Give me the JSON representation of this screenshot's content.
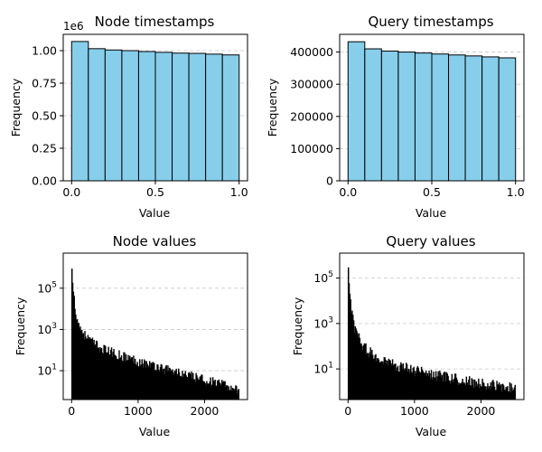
{
  "chart_data": [
    {
      "type": "bar",
      "title": "Node timestamps",
      "xlabel": "Value",
      "ylabel": "Frequency",
      "y_offset_label": "1e6",
      "bin_edges": [
        0.0,
        0.1,
        0.2,
        0.3,
        0.4,
        0.5,
        0.6,
        0.7,
        0.8,
        0.9,
        1.0
      ],
      "values": [
        1.07,
        1.015,
        1.005,
        1.0,
        0.993,
        0.987,
        0.981,
        0.979,
        0.973,
        0.967
      ],
      "xlim": [
        -0.05,
        1.05
      ],
      "ylim": [
        0,
        1.125
      ],
      "xticks": [
        0.0,
        0.5,
        1.0
      ],
      "xtick_labels": [
        "0.0",
        "0.5",
        "1.0"
      ],
      "yticks": [
        0,
        0.25,
        0.5,
        0.75,
        1.0
      ],
      "ytick_labels": [
        "0.00",
        "0.25",
        "0.50",
        "0.75",
        "1.00"
      ],
      "log_y": false,
      "grid": "y dashed",
      "bar_color": "#87ceeb",
      "edge_color": "#000000"
    },
    {
      "type": "bar",
      "title": "Query timestamps",
      "xlabel": "Value",
      "ylabel": "Frequency",
      "bin_edges": [
        0.0,
        0.1,
        0.2,
        0.3,
        0.4,
        0.5,
        0.6,
        0.7,
        0.8,
        0.9,
        1.0
      ],
      "values": [
        432000,
        410000,
        403000,
        400000,
        397000,
        394000,
        391000,
        388000,
        385000,
        382000
      ],
      "xlim": [
        -0.05,
        1.05
      ],
      "ylim": [
        0,
        455000
      ],
      "xticks": [
        0.0,
        0.5,
        1.0
      ],
      "xtick_labels": [
        "0.0",
        "0.5",
        "1.0"
      ],
      "yticks": [
        0,
        100000,
        200000,
        300000,
        400000
      ],
      "ytick_labels": [
        "0",
        "100000",
        "200000",
        "300000",
        "400000"
      ],
      "log_y": false,
      "grid": "y dashed",
      "bar_color": "#87ceeb",
      "edge_color": "#000000"
    },
    {
      "type": "bar",
      "title": "Node values",
      "xlabel": "Value",
      "ylabel": "Frequency",
      "x_range": [
        0,
        2520
      ],
      "curve": [
        [
          0,
          1800000
        ],
        [
          10,
          500000
        ],
        [
          20,
          120000
        ],
        [
          40,
          30000
        ],
        [
          60,
          8000
        ],
        [
          100,
          2000
        ],
        [
          150,
          900
        ],
        [
          200,
          500
        ],
        [
          300,
          250
        ],
        [
          400,
          140
        ],
        [
          500,
          100
        ],
        [
          600,
          75
        ],
        [
          800,
          45
        ],
        [
          1000,
          28
        ],
        [
          1200,
          18
        ],
        [
          1400,
          12
        ],
        [
          1600,
          8
        ],
        [
          1800,
          5
        ],
        [
          2000,
          3.5
        ],
        [
          2200,
          2.3
        ],
        [
          2400,
          1.5
        ],
        [
          2520,
          1.2
        ]
      ],
      "xlim": [
        -126,
        2646
      ],
      "ylim_log10": [
        -0.4,
        6.7
      ],
      "xticks": [
        0,
        1000,
        2000
      ],
      "xtick_labels": [
        "0",
        "1000",
        "2000"
      ],
      "yticks": [
        1,
        3,
        5
      ],
      "ytick_labels": [
        "10^1",
        "10^3",
        "10^5"
      ],
      "log_y": true,
      "grid": "y dashed",
      "bar_color": "#000000",
      "edge_color": "#000000"
    },
    {
      "type": "bar",
      "title": "Query values",
      "xlabel": "Value",
      "ylabel": "Frequency",
      "x_range": [
        0,
        2520
      ],
      "curve": [
        [
          0,
          700000
        ],
        [
          10,
          150000
        ],
        [
          20,
          40000
        ],
        [
          40,
          8000
        ],
        [
          60,
          2500
        ],
        [
          100,
          600
        ],
        [
          150,
          250
        ],
        [
          200,
          130
        ],
        [
          300,
          60
        ],
        [
          400,
          35
        ],
        [
          500,
          25
        ],
        [
          600,
          18
        ],
        [
          800,
          12
        ],
        [
          1000,
          8
        ],
        [
          1200,
          6
        ],
        [
          1400,
          4.5
        ],
        [
          1600,
          3.5
        ],
        [
          1800,
          2.8
        ],
        [
          2000,
          2.2
        ],
        [
          2200,
          1.8
        ],
        [
          2400,
          1.5
        ],
        [
          2520,
          1.3
        ]
      ],
      "xlim": [
        -126,
        2646
      ],
      "ylim_log10": [
        -0.35,
        6.1
      ],
      "xticks": [
        0,
        1000,
        2000
      ],
      "xtick_labels": [
        "0",
        "1000",
        "2000"
      ],
      "yticks": [
        1,
        3,
        5
      ],
      "ytick_labels": [
        "10^1",
        "10^3",
        "10^5"
      ],
      "log_y": true,
      "grid": "y dashed",
      "bar_color": "#000000",
      "edge_color": "#000000"
    }
  ]
}
